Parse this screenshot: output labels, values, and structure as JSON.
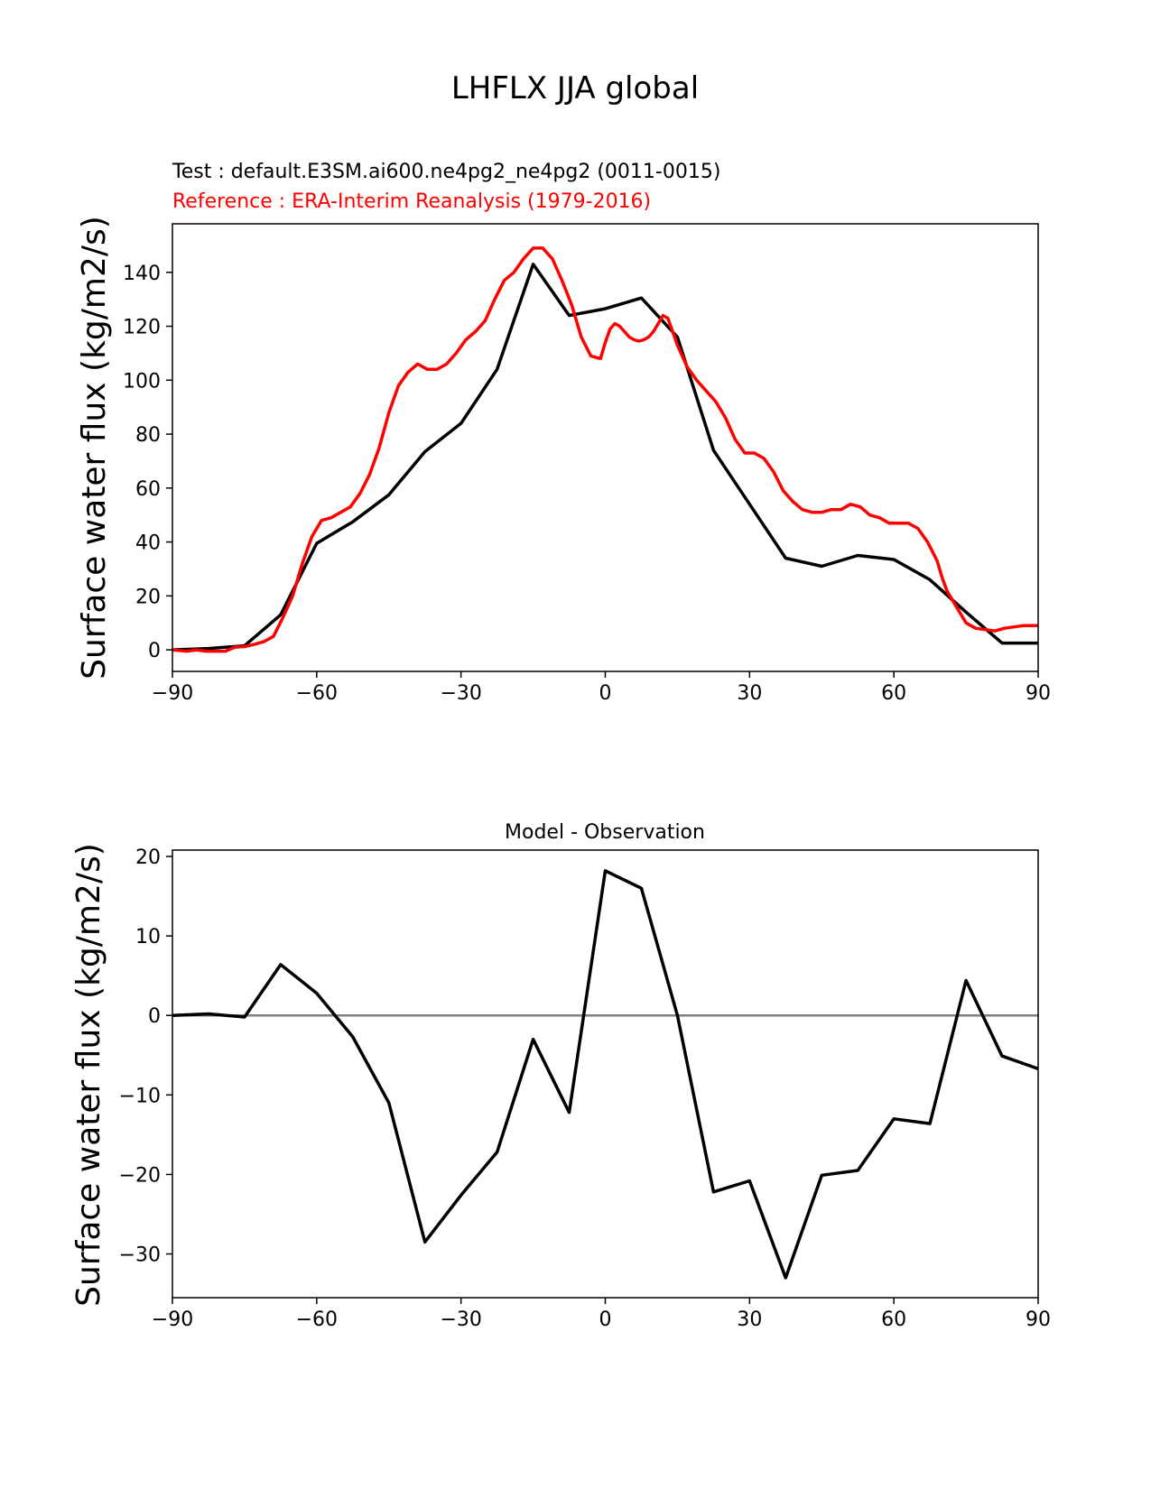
{
  "figure": {
    "suptitle": "LHFLX JJA global"
  },
  "chart_data": [
    {
      "type": "line",
      "test_label": "Test : default.E3SM.ai600.ne4pg2_ne4pg2 (0011-0015)",
      "reference_label": "Reference : ERA-Interim Reanalysis (1979-2016)",
      "xlabel": "",
      "ylabel": "Surface water flux (kg/m2/s)",
      "xlim": [
        -90,
        90
      ],
      "ylim": [
        -8,
        158
      ],
      "xticks": [
        -90,
        -60,
        -30,
        0,
        30,
        60,
        90
      ],
      "xtick_labels": [
        "−90",
        "−60",
        "−30",
        "0",
        "30",
        "60",
        "90"
      ],
      "yticks": [
        0,
        20,
        40,
        60,
        80,
        100,
        120,
        140
      ],
      "ytick_labels": [
        "0",
        "20",
        "40",
        "60",
        "80",
        "100",
        "120",
        "140"
      ],
      "colors": {
        "test": "#000000",
        "reference": "#ff0000"
      },
      "series": [
        {
          "name": "test",
          "x": [
            -90,
            -82.5,
            -75,
            -67.5,
            -60,
            -52.5,
            -45,
            -37.5,
            -30,
            -22.5,
            -15,
            -7.5,
            0,
            7.5,
            15,
            22.5,
            30,
            37.5,
            45,
            52.5,
            60,
            67.5,
            75,
            82.5,
            90
          ],
          "values": [
            0,
            0.5,
            1.5,
            13,
            39.5,
            47.5,
            57.5,
            73.5,
            84,
            104,
            143,
            124,
            126.5,
            130.5,
            116,
            74,
            54,
            34,
            31,
            35,
            33.5,
            26,
            14,
            2.5,
            2.5
          ]
        },
        {
          "name": "reference",
          "x": [
            -90,
            -87,
            -85,
            -83,
            -81,
            -79,
            -77,
            -75,
            -73,
            -71,
            -69,
            -67,
            -65,
            -63,
            -61,
            -59,
            -57,
            -55,
            -53,
            -51,
            -49,
            -47,
            -45,
            -43,
            -41,
            -39,
            -37,
            -35,
            -33,
            -31,
            -29,
            -27,
            -25,
            -23,
            -21,
            -19,
            -17,
            -15,
            -13,
            -11,
            -9,
            -7,
            -5,
            -3,
            -1,
            0,
            1,
            2,
            3,
            4,
            5,
            6,
            7,
            8,
            9,
            10,
            11,
            12,
            13,
            15,
            17,
            19,
            21,
            23,
            25,
            27,
            29,
            31,
            33,
            35,
            37,
            39,
            41,
            43,
            45,
            47,
            49,
            51,
            53,
            55,
            57,
            59,
            61,
            63,
            65,
            67,
            69,
            70,
            71,
            73,
            75,
            77,
            79,
            81,
            83,
            85,
            87,
            90
          ],
          "values": [
            0,
            -0.5,
            0,
            -0.5,
            -0.5,
            -0.5,
            1,
            1.2,
            2,
            3,
            5,
            12,
            20,
            32,
            42,
            48,
            49,
            51,
            53,
            58,
            65,
            75,
            88,
            98,
            103,
            106,
            104,
            104,
            106,
            110,
            115,
            118,
            122,
            130,
            137,
            140,
            145,
            149,
            149,
            145,
            137,
            128,
            116,
            109,
            108,
            114,
            119,
            121,
            120,
            118,
            116,
            115,
            114.5,
            115,
            116,
            118,
            121,
            124,
            123,
            113,
            105,
            100,
            96,
            92,
            86,
            78,
            73,
            73,
            71,
            66,
            59,
            55,
            52,
            51,
            51,
            52,
            52,
            54,
            53,
            50,
            49,
            47,
            47,
            47,
            45,
            40,
            33,
            27,
            22,
            16,
            10,
            8,
            7.5,
            7,
            8,
            8.5,
            9,
            9
          ]
        }
      ]
    },
    {
      "type": "line",
      "title": "Model - Observation",
      "xlabel": "",
      "ylabel": "Surface water flux (kg/m2/s)",
      "xlim": [
        -90,
        90
      ],
      "ylim": [
        -35.5,
        20.8
      ],
      "xticks": [
        -90,
        -60,
        -30,
        0,
        30,
        60,
        90
      ],
      "xtick_labels": [
        "−90",
        "−60",
        "−30",
        "0",
        "30",
        "60",
        "90"
      ],
      "yticks": [
        -30,
        -20,
        -10,
        0,
        10,
        20
      ],
      "ytick_labels": [
        "−30",
        "−20",
        "−10",
        "0",
        "10",
        "20"
      ],
      "colors": {
        "diff": "#000000",
        "zero_line": "#808080"
      },
      "series": [
        {
          "name": "Model - Observation",
          "x": [
            -90,
            -82.5,
            -75,
            -67.5,
            -60,
            -52.5,
            -45,
            -37.5,
            -30,
            -22.5,
            -15,
            -7.5,
            0,
            7.5,
            15,
            22.5,
            30,
            37.5,
            45,
            52.5,
            60,
            67.5,
            75,
            82.5,
            90
          ],
          "values": [
            0,
            0.2,
            -0.2,
            6.4,
            2.8,
            -2.7,
            -11,
            -28.5,
            -22.6,
            -17.2,
            -3,
            -12.2,
            18.2,
            16,
            0,
            -22.2,
            -20.8,
            -33,
            -20.1,
            -19.5,
            -13,
            -13.6,
            4.4,
            -5.1,
            -6.7
          ]
        }
      ]
    }
  ]
}
